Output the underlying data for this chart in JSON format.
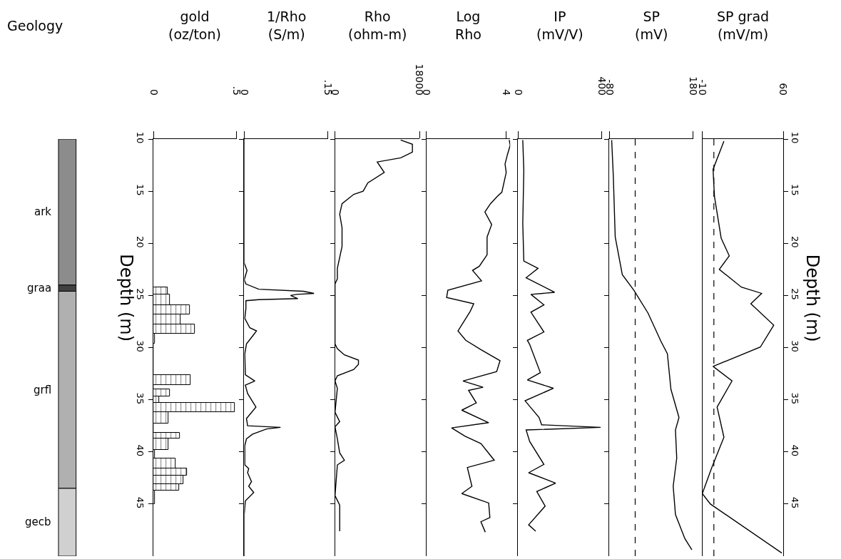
{
  "chart_data": [
    {
      "type": "other",
      "title": "Geology",
      "annotations": [
        "ark",
        "graa",
        "grfl",
        "gecb"
      ]
    },
    {
      "type": "histogram",
      "orientation": "horizontal",
      "title": "gold\n(oz/ton)",
      "ylabel": "Depth (m)",
      "xlim": [
        0,
        0.5
      ],
      "xticks": [
        0,
        {
          "value": 0.5,
          "label": ".5"
        }
      ],
      "ylim": [
        50,
        10
      ],
      "yticks": [
        10,
        15,
        20,
        25,
        30,
        35,
        40,
        45
      ],
      "color": "#000000",
      "bins": [
        24.25,
        24.9,
        25.9,
        26.8,
        27.8,
        28.7,
        29.65,
        32.65,
        33.6,
        34.0,
        34.7,
        35.3,
        36.2,
        37.3,
        38.2,
        38.7,
        39.8,
        40.6,
        41.6,
        42.3,
        43.1,
        43.7,
        45
      ],
      "values": [
        0.085,
        0.1,
        0.22,
        0.165,
        0.25,
        0.01,
        0,
        0.225,
        0,
        0.1,
        0.035,
        0.49,
        0.09,
        0,
        0.16,
        0.09,
        0.01,
        0.135,
        0.2,
        0.18,
        0.155,
        0.01
      ]
    },
    {
      "type": "line",
      "orientation": "horizontal",
      "title": "1/Rho\n(S/m)",
      "xlim": [
        0,
        0.15
      ],
      "xticks": [
        0,
        {
          "value": 0.15,
          "label": ".15"
        }
      ],
      "ylim": [
        50,
        10
      ],
      "yticks": [
        10,
        15,
        20,
        25,
        30,
        35,
        40,
        45
      ],
      "tick_labels": "x",
      "series": [
        {
          "color": "#000000",
          "x": [
            10,
            21.9,
            22.6,
            23.5,
            23.9,
            24.4,
            24.6,
            24.8,
            24.9,
            25.0,
            25.3,
            25.4,
            25.5,
            26.25,
            27.2,
            28.1,
            28.4,
            28.75,
            29.65,
            30.6,
            32.6,
            33.2,
            33.6,
            34.4,
            35.7,
            36.8,
            37.5,
            37.65,
            37.8,
            38.3,
            38.75,
            39.4,
            41.25,
            41.6,
            42.0,
            42.85,
            43.3,
            43.9,
            44.7,
            46.0,
            50
          ],
          "values": [
            0,
            0,
            0.005,
            0,
            0.003,
            0.026,
            0.106,
            0.125,
            0.094,
            0.083,
            0.096,
            0.026,
            0.003,
            0.003,
            0.001,
            0.01,
            0.022,
            0.017,
            0.004,
            0.001,
            0.002,
            0.019,
            0.002,
            0.006,
            0.021,
            0.004,
            0.006,
            0.065,
            0.04,
            0.015,
            0.004,
            0.001,
            0.001,
            0.008,
            0.006,
            0.013,
            0.008,
            0.017,
            0.002,
            0,
            0
          ]
        }
      ]
    },
    {
      "type": "line",
      "orientation": "horizontal",
      "title": "Rho\n(ohm-m)",
      "xlim": [
        0,
        18000
      ],
      "xticks": [
        0,
        18000
      ],
      "ylim": [
        50,
        10
      ],
      "yticks": [
        10,
        15,
        20,
        25,
        30,
        35,
        40,
        45
      ],
      "tick_labels": "x",
      "series": [
        {
          "color": "#000000",
          "x": [
            10.1,
            10.5,
            11.25,
            11.8,
            12.2,
            13.2,
            14.2,
            15.0,
            15.3,
            16.2,
            17.2,
            18.5,
            20.3,
            22.4,
            23.4,
            23.9,
            29.4,
            29.65,
            30.1,
            30.7,
            31.2,
            31.6,
            32.1,
            32.7,
            33.2,
            33.9,
            36.2,
            37.1,
            37.6,
            38.75,
            40.1,
            40.8,
            41.25,
            44.2,
            45.1,
            46.25,
            47.6
          ],
          "values": [
            14000,
            16500,
            16500,
            14000,
            9000,
            10500,
            7000,
            6000,
            4000,
            1500,
            1000,
            1500,
            1500,
            500,
            500,
            0,
            0,
            0,
            500,
            2000,
            5000,
            5000,
            4000,
            500,
            0,
            500,
            0,
            1000,
            0,
            500,
            1000,
            2000,
            500,
            0,
            1000,
            1000,
            1000
          ]
        }
      ]
    },
    {
      "type": "line",
      "orientation": "horizontal",
      "title": "Log\nRho",
      "xlim": [
        0,
        4.2
      ],
      "xticks": [
        0,
        4
      ],
      "ylim": [
        50,
        10
      ],
      "yticks": [
        10,
        15,
        20,
        25,
        30,
        35,
        40,
        45
      ],
      "tick_labels": "x",
      "series": [
        {
          "color": "#000000",
          "x": [
            10.1,
            10.6,
            11.5,
            12.4,
            13.2,
            15.1,
            15.5,
            16.2,
            17.0,
            18.2,
            19.4,
            21.1,
            22.2,
            22.6,
            23.6,
            24.5,
            25.2,
            25.8,
            26.5,
            28.4,
            29.3,
            30.2,
            31.25,
            32.3,
            33.2,
            33.8,
            34.1,
            35.3,
            36.0,
            37.2,
            37.7,
            38.5,
            39.2,
            40.8,
            41.5,
            43.3,
            44.0,
            44.9,
            46.3,
            46.7,
            47.7
          ],
          "values": [
            4.15,
            4.2,
            4.06,
            3.94,
            4.0,
            3.78,
            3.55,
            3.21,
            2.93,
            3.27,
            3.04,
            3.04,
            2.65,
            2.31,
            2.76,
            1.07,
            1.01,
            2.37,
            2.2,
            1.58,
            1.97,
            2.73,
            3.69,
            3.52,
            1.83,
            2.84,
            2.11,
            2.5,
            1.77,
            3.12,
            1.26,
            1.94,
            2.73,
            3.4,
            2.05,
            2.28,
            1.77,
            3.12,
            3.18,
            2.73,
            2.95
          ]
        }
      ]
    },
    {
      "type": "line",
      "orientation": "horizontal",
      "title": "IP\n(mV/V)",
      "xlim": [
        0,
        400
      ],
      "xticks": [
        0,
        400
      ],
      "ylim": [
        50,
        10
      ],
      "yticks": [
        10,
        15,
        20,
        25,
        30,
        35,
        40,
        45
      ],
      "tick_labels": "x",
      "series": [
        {
          "color": "#000000",
          "x": [
            10.1,
            13.0,
            18.1,
            21.7,
            22.4,
            23.3,
            24.7,
            24.9,
            25.9,
            26.6,
            28.5,
            29.3,
            29.7,
            32.4,
            33.1,
            33.9,
            35.1,
            36.7,
            37.4,
            37.65,
            37.9,
            39.0,
            41.2,
            42.0,
            43.0,
            43.8,
            45.2,
            47.0,
            47.6
          ],
          "values": [
            23,
            28,
            23,
            28,
            96,
            39,
            175,
            62,
            124,
            62,
            124,
            45,
            56,
            107,
            45,
            169,
            34,
            101,
            113,
            395,
            39,
            56,
            124,
            51,
            180,
            90,
            130,
            51,
            85
          ]
        }
      ]
    },
    {
      "type": "line",
      "orientation": "horizontal",
      "title": "SP\n(mV)",
      "xlim": [
        -80,
        180
      ],
      "xticks": [
        -80,
        180
      ],
      "ylim": [
        50,
        10
      ],
      "yticks": [
        10,
        15,
        20,
        25,
        30,
        35,
        40,
        45
      ],
      "tick_labels": "x",
      "ref_lines": [
        {
          "axis": "x",
          "value": 0,
          "line_style": "dashed"
        }
      ],
      "series": [
        {
          "color": "#000000",
          "x": [
            10.1,
            13.5,
            19.4,
            23.0,
            24.5,
            26.7,
            29.4,
            30.6,
            34.0,
            36.7,
            37.9,
            40.6,
            43.3,
            46.0,
            48.3,
            49.4
          ],
          "values": [
            -73,
            -68,
            -62,
            -40,
            -4,
            40,
            80,
            100,
            111,
            136,
            125,
            129,
            118,
            125,
            154,
            176
          ]
        }
      ]
    },
    {
      "type": "line",
      "orientation": "horizontal",
      "title": "SP grad\n(mV/m)",
      "ylabel": "Depth (m)",
      "xlim": [
        -10,
        60
      ],
      "xticks": [
        -10,
        60
      ],
      "ylim": [
        50,
        10
      ],
      "yticks": [
        10,
        15,
        20,
        25,
        30,
        35,
        40,
        45
      ],
      "ref_lines": [
        {
          "axis": "x",
          "value": 0,
          "line_style": "dashed"
        }
      ],
      "series": [
        {
          "color": "#000000",
          "x": [
            10.2,
            12.9,
            15.5,
            19.5,
            21.2,
            22.5,
            24.2,
            24.8,
            25.8,
            27.85,
            29.95,
            31.8,
            33.2,
            35.7,
            38.6,
            41.5,
            44.0,
            45.0,
            49.7
          ],
          "values": [
            8.7,
            -0.7,
            0.5,
            6.3,
            13.3,
            4.7,
            23.8,
            41.3,
            32,
            51.8,
            40.2,
            -0.7,
            15.7,
            2.8,
            8.7,
            -1.8,
            -10,
            -3,
            58.8
          ]
        }
      ]
    }
  ]
}
